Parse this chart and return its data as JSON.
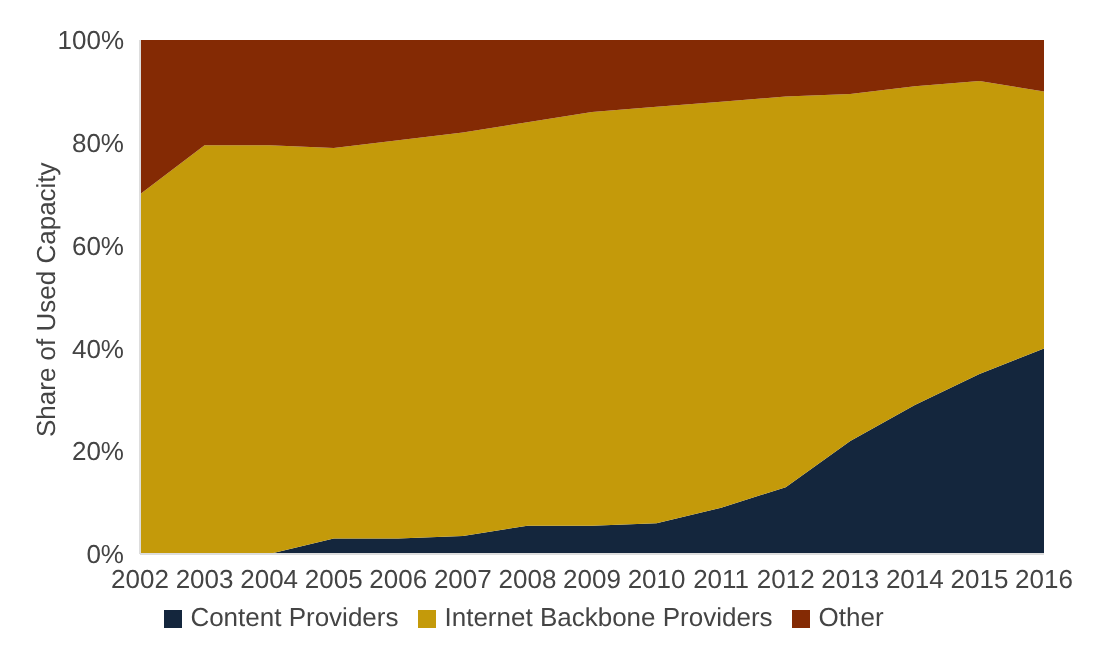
{
  "chart_data": {
    "type": "area",
    "stacked": true,
    "ylabel": "Share of Used Capacity",
    "categories": [
      "2002",
      "2003",
      "2004",
      "2005",
      "2006",
      "2007",
      "2008",
      "2009",
      "2010",
      "2011",
      "2012",
      "2013",
      "2014",
      "2015",
      "2016"
    ],
    "series": [
      {
        "name": "Content Providers",
        "color": "#14263d",
        "values": [
          0,
          0,
          0,
          3,
          3,
          3.5,
          5.5,
          5.5,
          6,
          9,
          13,
          22,
          29,
          35,
          40
        ]
      },
      {
        "name": "Internet Backbone Providers",
        "color": "#c49a0a",
        "values": [
          70,
          79.5,
          79.5,
          76,
          77.5,
          78.5,
          78.5,
          80.5,
          81,
          79,
          76,
          67.5,
          62,
          57,
          50
        ]
      },
      {
        "name": "Other",
        "color": "#842a04",
        "values": [
          30,
          20.5,
          20.5,
          21,
          19.5,
          18,
          16,
          14,
          13,
          12,
          11,
          10.5,
          9,
          8,
          10
        ]
      }
    ],
    "ylim": [
      0,
      100
    ],
    "yticks": [
      {
        "value": 0,
        "label": "0%"
      },
      {
        "value": 20,
        "label": "20%"
      },
      {
        "value": 40,
        "label": "40%"
      },
      {
        "value": 60,
        "label": "60%"
      },
      {
        "value": 80,
        "label": "80%"
      },
      {
        "value": 100,
        "label": "100%"
      }
    ],
    "grid": false,
    "legend": "bottom"
  }
}
